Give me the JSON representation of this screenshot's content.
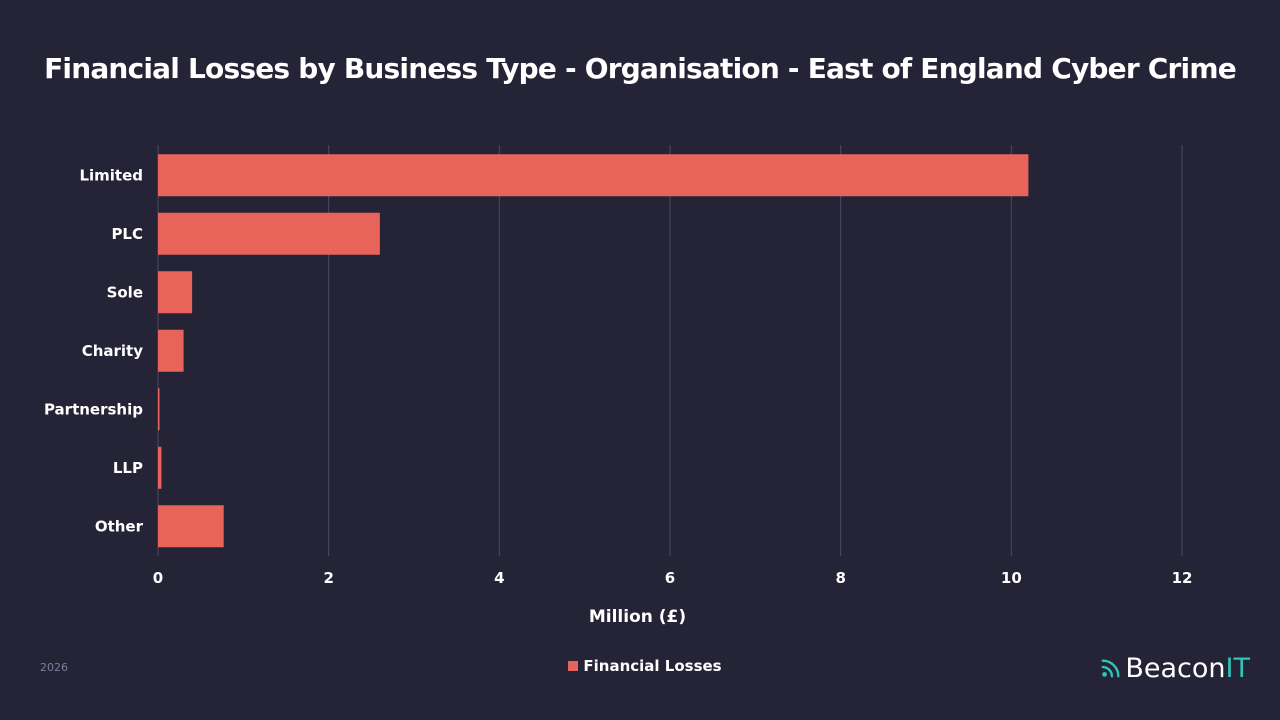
{
  "title": "Financial Losses by Business Type - Organisation - East of England Cyber Crime",
  "footer": {
    "year": "2026",
    "brand_main": "Beacon",
    "brand_accent": "IT"
  },
  "colors": {
    "background": "#252336",
    "bar": "#e8645a",
    "grid": "#4a4866",
    "brand_accent": "#2ec4b6"
  },
  "chart_data": {
    "type": "bar",
    "orientation": "horizontal",
    "categories": [
      "Limited",
      "PLC",
      "Sole",
      "Charity",
      "Partnership",
      "LLP",
      "Other"
    ],
    "series": [
      {
        "name": "Financial Losses",
        "values": [
          10.2,
          2.6,
          0.4,
          0.3,
          0.01,
          0.04,
          0.77
        ]
      }
    ],
    "xlabel": "Million (£)",
    "ylabel": "",
    "xlim": [
      0,
      12
    ],
    "xticks": [
      0,
      2,
      4,
      6,
      8,
      10,
      12
    ],
    "grid": true,
    "legend": "bottom-center"
  }
}
